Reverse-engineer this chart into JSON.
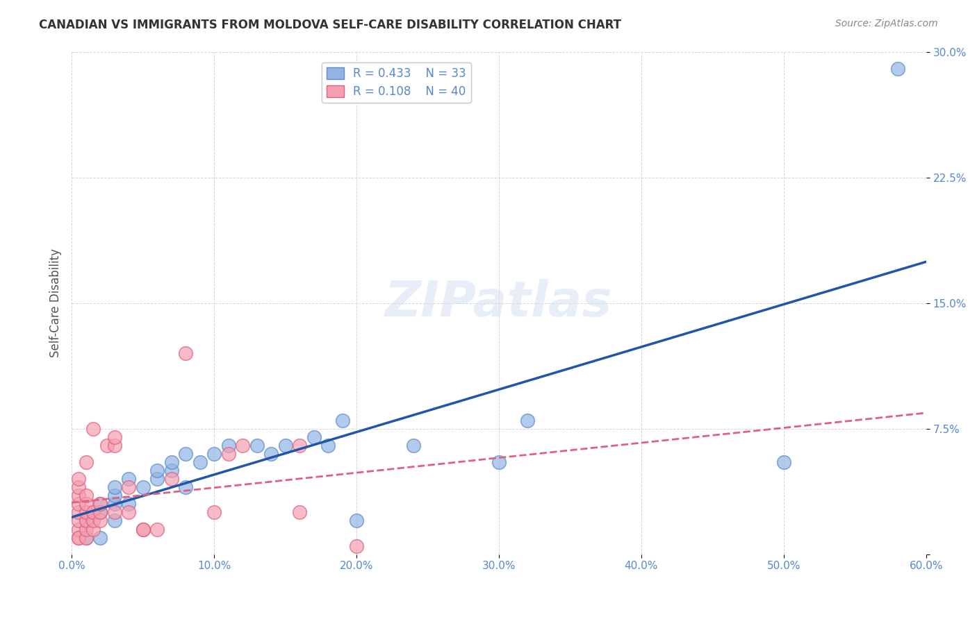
{
  "title": "CANADIAN VS IMMIGRANTS FROM MOLDOVA SELF-CARE DISABILITY CORRELATION CHART",
  "source": "Source: ZipAtlas.com",
  "xlabel": "",
  "ylabel": "Self-Care Disability",
  "xlim": [
    0.0,
    0.6
  ],
  "ylim": [
    0.0,
    0.3
  ],
  "yticks": [
    0.0,
    0.075,
    0.15,
    0.225,
    0.3
  ],
  "ytick_labels": [
    "",
    "7.5%",
    "15.0%",
    "22.5%",
    "30.0%"
  ],
  "xticks": [
    0.0,
    0.1,
    0.2,
    0.3,
    0.4,
    0.5,
    0.6
  ],
  "xtick_labels": [
    "0.0%",
    "10.0%",
    "20.0%",
    "30.0%",
    "40.0%",
    "50.0%",
    "60.0%"
  ],
  "canadian_color": "#92b4e3",
  "moldova_color": "#f4a0b0",
  "canadian_edge_color": "#5b8cc8",
  "moldova_edge_color": "#e06080",
  "regression_blue_color": "#2255aa",
  "regression_pink_color": "#e06080",
  "R_canadian": 0.433,
  "N_canadian": 33,
  "R_moldova": 0.108,
  "N_moldova": 40,
  "background_color": "#ffffff",
  "grid_color": "#cccccc",
  "title_color": "#333333",
  "axis_color": "#5588cc",
  "watermark_text": "ZIPatlas",
  "canadians_x": [
    0.01,
    0.01,
    0.02,
    0.02,
    0.02,
    0.03,
    0.03,
    0.03,
    0.03,
    0.04,
    0.04,
    0.05,
    0.06,
    0.06,
    0.07,
    0.07,
    0.08,
    0.08,
    0.09,
    0.1,
    0.11,
    0.13,
    0.14,
    0.15,
    0.17,
    0.18,
    0.19,
    0.2,
    0.24,
    0.3,
    0.32,
    0.5,
    0.58
  ],
  "canadians_y": [
    0.01,
    0.02,
    0.01,
    0.025,
    0.03,
    0.02,
    0.03,
    0.035,
    0.04,
    0.045,
    0.03,
    0.04,
    0.045,
    0.05,
    0.05,
    0.055,
    0.04,
    0.06,
    0.055,
    0.06,
    0.065,
    0.065,
    0.06,
    0.065,
    0.07,
    0.065,
    0.08,
    0.02,
    0.065,
    0.055,
    0.08,
    0.055,
    0.29
  ],
  "moldova_x": [
    0.005,
    0.005,
    0.005,
    0.005,
    0.005,
    0.005,
    0.005,
    0.005,
    0.005,
    0.01,
    0.01,
    0.01,
    0.01,
    0.01,
    0.01,
    0.01,
    0.015,
    0.015,
    0.015,
    0.015,
    0.02,
    0.02,
    0.02,
    0.025,
    0.03,
    0.03,
    0.03,
    0.04,
    0.04,
    0.05,
    0.05,
    0.06,
    0.07,
    0.08,
    0.1,
    0.11,
    0.12,
    0.16,
    0.16,
    0.2
  ],
  "moldova_y": [
    0.01,
    0.015,
    0.02,
    0.025,
    0.03,
    0.035,
    0.04,
    0.045,
    0.01,
    0.01,
    0.015,
    0.02,
    0.025,
    0.03,
    0.035,
    0.055,
    0.015,
    0.02,
    0.025,
    0.075,
    0.02,
    0.025,
    0.03,
    0.065,
    0.065,
    0.025,
    0.07,
    0.025,
    0.04,
    0.015,
    0.015,
    0.015,
    0.045,
    0.12,
    0.025,
    0.06,
    0.065,
    0.065,
    0.025,
    0.005
  ]
}
